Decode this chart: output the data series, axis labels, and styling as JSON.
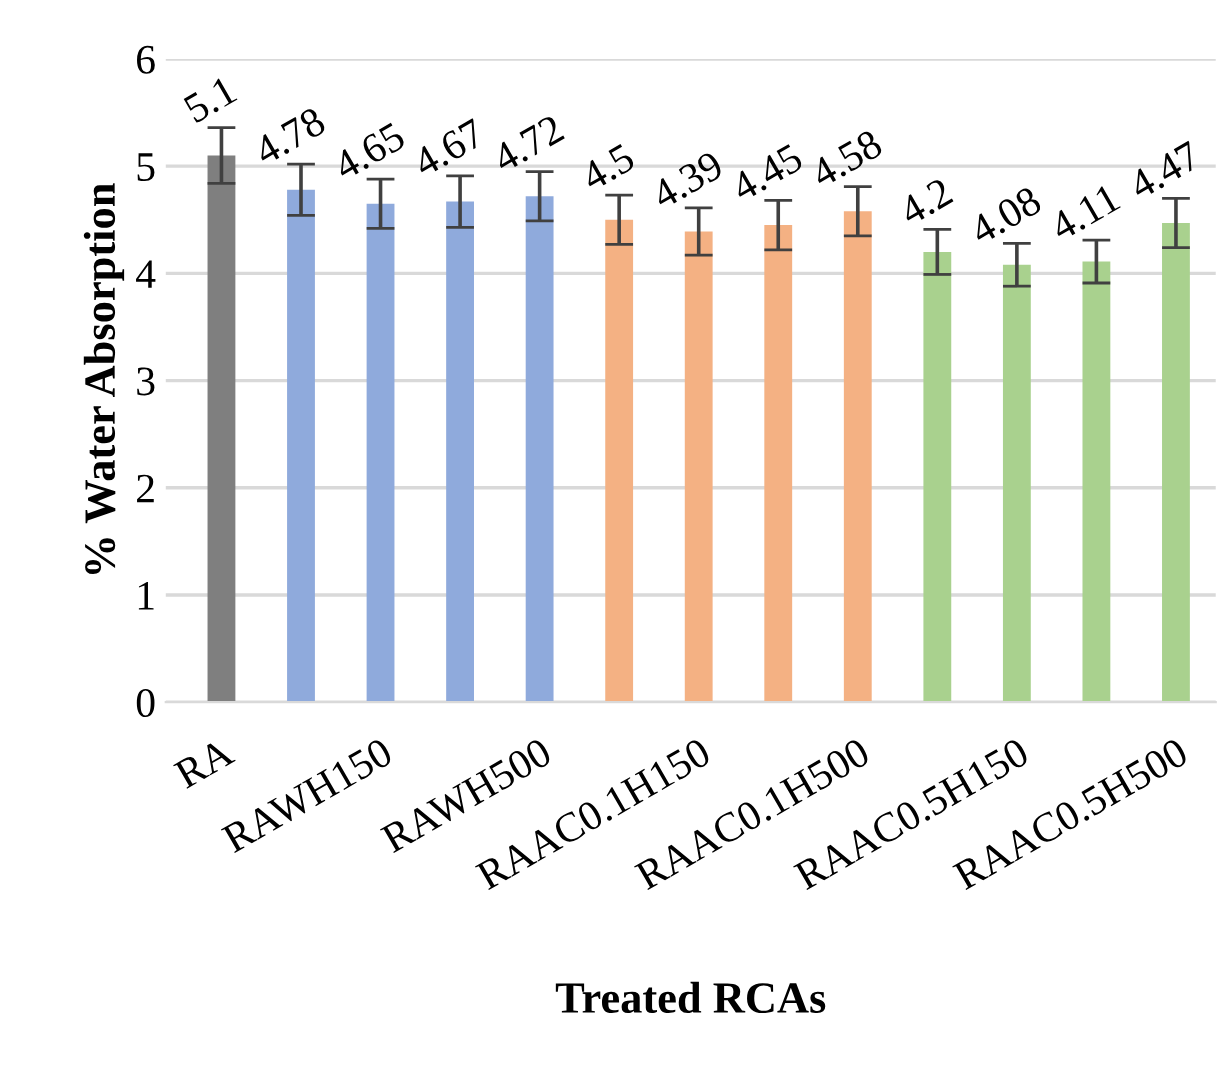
{
  "chart_data": {
    "type": "bar",
    "xlabel": "Treated RCAs",
    "ylabel": "% Water Absorption",
    "categories": [
      "RA",
      null,
      "RAWH150",
      null,
      "RAWH500",
      null,
      "RAAC0.1H150",
      null,
      "RAAC0.1H500",
      null,
      "RAAC0.5H150",
      null,
      "RAAC0.5H500"
    ],
    "values": [
      5.1,
      4.78,
      4.65,
      4.67,
      4.72,
      4.5,
      4.39,
      4.45,
      4.58,
      4.2,
      4.08,
      4.11,
      4.47
    ],
    "errors": [
      0.26,
      0.24,
      0.23,
      0.24,
      0.23,
      0.23,
      0.22,
      0.23,
      0.23,
      0.21,
      0.2,
      0.2,
      0.23
    ],
    "colors": [
      "#7f7f7f",
      "#8faadc",
      "#8faadc",
      "#8faadc",
      "#8faadc",
      "#f4b183",
      "#f4b183",
      "#f4b183",
      "#f4b183",
      "#a9d18e",
      "#a9d18e",
      "#a9d18e",
      "#a9d18e"
    ],
    "ylim": [
      0,
      6
    ],
    "yticks": [
      0,
      1,
      2,
      3,
      4,
      5,
      6
    ],
    "grid": "y",
    "data_labels": true
  }
}
